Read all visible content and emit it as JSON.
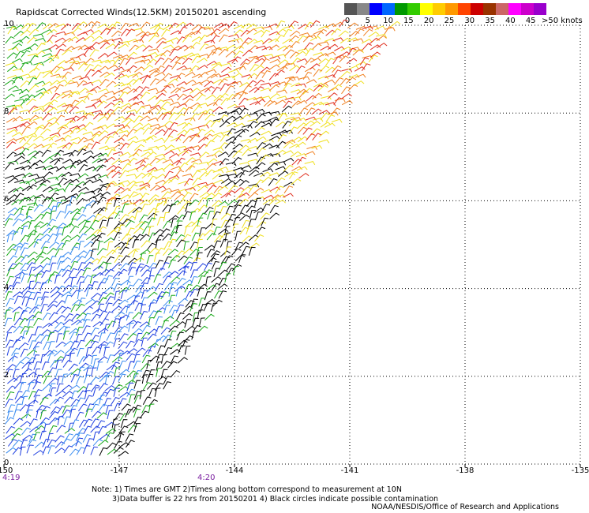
{
  "title": "Rapidscat Corrected Winds(12.5KM) 20150201 ascending",
  "legend": {
    "labels": [
      "0",
      "5",
      "10",
      "15",
      "20",
      "25",
      "30",
      "35",
      "40",
      "45",
      ">50 knots"
    ],
    "colors": [
      "#555555",
      "#888888",
      "#0000ff",
      "#0066ff",
      "#009900",
      "#33cc00",
      "#ffff00",
      "#ffcc00",
      "#ff9900",
      "#ff4400",
      "#cc0000",
      "#993300",
      "#cc6666",
      "#ff00ff",
      "#cc00cc",
      "#9900cc"
    ]
  },
  "axes": {
    "x_ticks": [
      "-150",
      "-147",
      "-144",
      "-141",
      "-138",
      "-135"
    ],
    "y_ticks": [
      "0",
      "2",
      "4",
      "6",
      "8",
      "10"
    ],
    "lon_range": [
      -150,
      -135
    ],
    "lat_range": [
      0,
      10
    ]
  },
  "time_labels": [
    "4:19",
    "4:20"
  ],
  "notes": {
    "line1": "Note: 1) Times are GMT 2)Times along bottom correspond to measurement at 10N",
    "line2": "3)Data buffer is 22 hrs from 20150201 4) Black circles indicate possible contamination"
  },
  "credit": "NOAA/NESDIS/Office of Research and Applications",
  "wind_colors": {
    "blue": "#1f3fe0",
    "light_blue": "#3a8cf0",
    "green": "#18a818",
    "yellow": "#f0e020",
    "orange": "#f08020",
    "red": "#e03020",
    "black": "#000000"
  }
}
